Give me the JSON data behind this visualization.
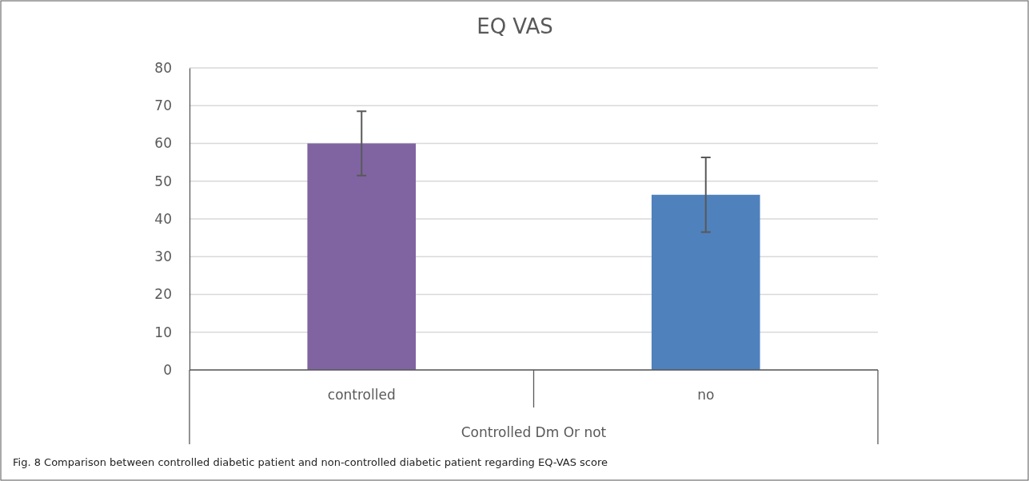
{
  "chart_data": {
    "type": "bar",
    "title": "EQ VAS",
    "xlabel": "Controlled Dm Or not",
    "categories": [
      "controlled",
      "no"
    ],
    "values": [
      60,
      46.4
    ],
    "colors": [
      "#8064a2",
      "#4f81bd"
    ],
    "errors": [
      8.5,
      9.9
    ],
    "ylim": [
      0,
      80
    ],
    "yticks": [
      0,
      10,
      20,
      30,
      40,
      50,
      60,
      70,
      80
    ],
    "grid": "y",
    "annotations": [
      "Fig. 8  Comparison between controlled diabetic patient and non-controlled diabetic patient regarding EQ-VAS score"
    ]
  }
}
